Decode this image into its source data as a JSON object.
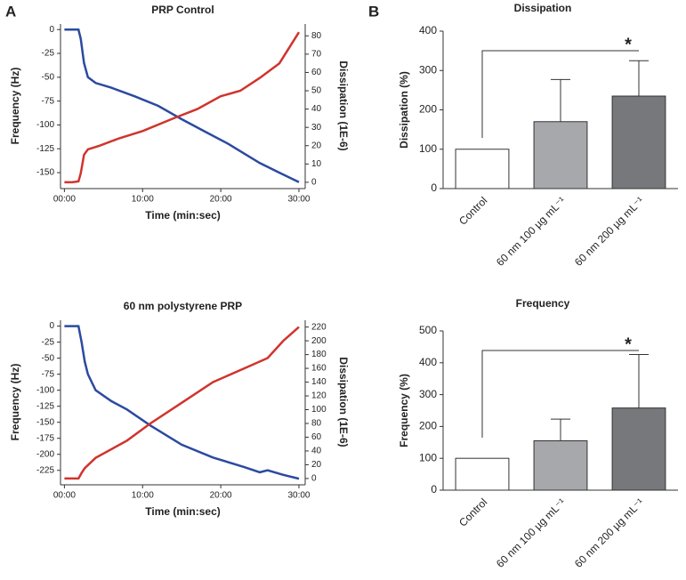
{
  "panel_labels": [
    "A",
    "B"
  ],
  "chart_data": [
    {
      "type": "line",
      "title": "PRP Control",
      "xlabel": "Time (min:sec)",
      "ylabel": "Frequency (Hz)",
      "y2label": "Dissipation (1E-6)",
      "xlim": [
        -0.5,
        30.8
      ],
      "xticks": [
        {
          "value": 0,
          "label": "00:00"
        },
        {
          "value": 10,
          "label": "10:00"
        },
        {
          "value": 20,
          "label": "20:00"
        },
        {
          "value": 30,
          "label": "30:00"
        }
      ],
      "ylim": [
        -163,
        3
      ],
      "yticks": [
        0,
        -25,
        -50,
        -75,
        -100,
        -125,
        -150
      ],
      "y2lim": [
        -1.5,
        85
      ],
      "y2ticks": [
        0,
        10,
        20,
        30,
        40,
        50,
        60,
        70,
        80
      ],
      "series": [
        {
          "color": "#2b4aa0",
          "axis": "y",
          "x": [
            0,
            1,
            1.8,
            2.1,
            2.5,
            3,
            4,
            6,
            9,
            12,
            15,
            18,
            21,
            22,
            25,
            27.5,
            30
          ],
          "values": [
            0,
            0,
            0,
            -10,
            -35,
            -50,
            -56,
            -61,
            -70,
            -80,
            -94,
            -107,
            -120,
            -125,
            -140,
            -150,
            -160
          ]
        },
        {
          "color": "#d0342c",
          "axis": "y2",
          "x": [
            0,
            1,
            1.8,
            2.1,
            2.5,
            3,
            4.5,
            7,
            10,
            14,
            17,
            20,
            22.5,
            25,
            27.5,
            30
          ],
          "values": [
            0,
            0,
            0.5,
            5,
            15,
            18,
            20,
            24,
            28,
            35,
            40,
            47,
            50,
            57,
            65,
            82
          ]
        }
      ]
    },
    {
      "type": "line",
      "title": "60 nm polystyrene PRP",
      "xlabel": "Time (min:sec)",
      "ylabel": "Frequency (Hz)",
      "y2label": "Dissipation (1E-6)",
      "xlim": [
        -0.5,
        30.8
      ],
      "xticks": [
        {
          "value": 0,
          "label": "00:00"
        },
        {
          "value": 10,
          "label": "10:00"
        },
        {
          "value": 20,
          "label": "20:00"
        },
        {
          "value": 30,
          "label": "30:00"
        }
      ],
      "ylim": [
        -242,
        5
      ],
      "yticks": [
        0,
        -25,
        -50,
        -75,
        -100,
        -125,
        -150,
        -175,
        -200,
        -225
      ],
      "y2lim": [
        -4,
        226
      ],
      "y2ticks": [
        0,
        20,
        40,
        60,
        80,
        100,
        120,
        140,
        160,
        180,
        200,
        220
      ],
      "series": [
        {
          "color": "#2b4aa0",
          "axis": "y",
          "x": [
            0,
            1,
            1.8,
            2.2,
            2.6,
            3,
            4,
            6,
            8,
            11,
            15,
            19,
            23,
            25,
            26,
            28,
            30
          ],
          "values": [
            0,
            0,
            0,
            -25,
            -55,
            -75,
            -100,
            -117,
            -130,
            -155,
            -185,
            -205,
            -220,
            -228,
            -225,
            -232,
            -238
          ]
        },
        {
          "color": "#d0342c",
          "axis": "y2",
          "x": [
            0,
            1,
            1.8,
            2.2,
            2.6,
            4,
            8,
            11,
            15,
            19,
            23,
            26,
            28,
            30
          ],
          "values": [
            0,
            0,
            0,
            8,
            15,
            30,
            55,
            80,
            110,
            140,
            160,
            175,
            200,
            220
          ]
        }
      ]
    },
    {
      "type": "bar",
      "title": "Dissipation",
      "ylabel": "Dissipation (%)",
      "annotation": "*",
      "categories": [
        "Control",
        "60 nm 100 µg mL⁻¹",
        "60 nm 200 µg mL⁻¹"
      ],
      "values": [
        100,
        170,
        235
      ],
      "errors": [
        null,
        107,
        90
      ],
      "colors": [
        "#ffffff",
        "#a6a8ab",
        "#76787b"
      ],
      "ylim": [
        0,
        400
      ],
      "yticks": [
        0,
        100,
        200,
        300,
        400
      ]
    },
    {
      "type": "bar",
      "title": "Frequency",
      "ylabel": "Frequency (%)",
      "annotation": "*",
      "categories": [
        "Control",
        "60 nm 100 µg mL⁻¹",
        "60 nm 200 µg mL⁻¹"
      ],
      "values": [
        100,
        155,
        258
      ],
      "errors": [
        null,
        68,
        168
      ],
      "colors": [
        "#ffffff",
        "#a6a8ab",
        "#76787b"
      ],
      "ylim": [
        0,
        500
      ],
      "yticks": [
        0,
        100,
        200,
        300,
        400,
        500
      ]
    }
  ]
}
